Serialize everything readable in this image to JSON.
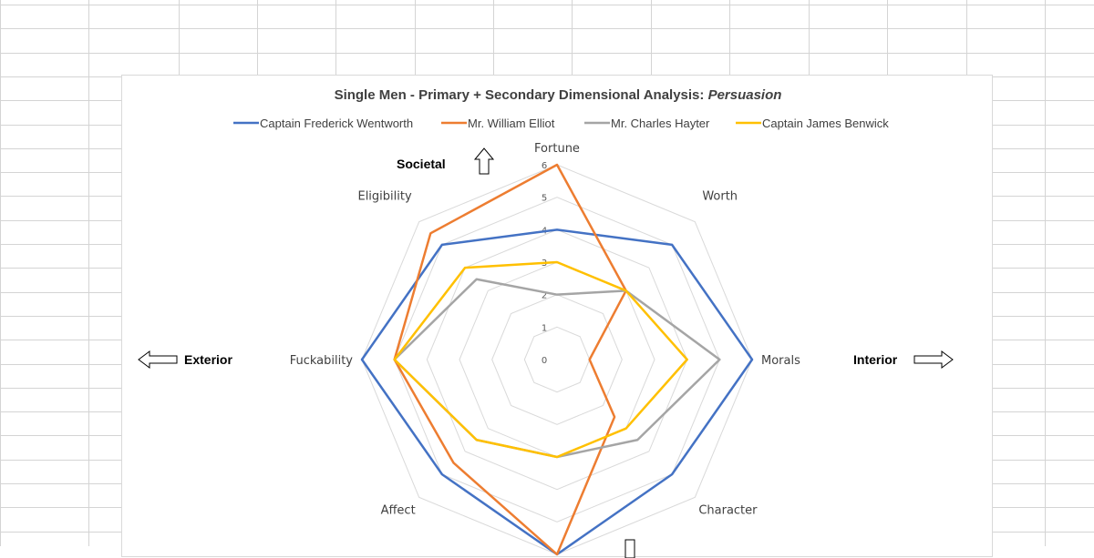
{
  "chart_data": {
    "type": "radar",
    "title_main": "Single Men - Primary + Secondary Dimensional Analysis: ",
    "title_italic": "Persuasion",
    "axes": [
      "Fortune",
      "Worth",
      "Morals",
      "Character",
      "",
      "Affect",
      "Fuckability",
      "Eligibility"
    ],
    "rlim": [
      0,
      6
    ],
    "ticks": [
      "0",
      "1",
      "2",
      "3",
      "4",
      "5",
      "6"
    ],
    "grid": true,
    "legend_position": "top",
    "series": [
      {
        "name": "Captain Frederick Wentworth",
        "color": "#4472C4",
        "values": [
          4,
          5,
          6,
          5,
          6,
          5,
          6,
          5
        ]
      },
      {
        "name": "Mr. William Elliot",
        "color": "#ED7D31",
        "values": [
          6,
          3,
          1,
          2.5,
          6,
          4.5,
          5,
          5.5
        ]
      },
      {
        "name": "Mr. Charles Hayter",
        "color": "#A5A5A5",
        "values": [
          2,
          3,
          5,
          3.5,
          3,
          3.5,
          5,
          3.5
        ]
      },
      {
        "name": "Captain James Benwick",
        "color": "#FFC000",
        "values": [
          3,
          3,
          4,
          3,
          3,
          3.5,
          5,
          4
        ]
      }
    ],
    "direction_labels": {
      "top": "Societal",
      "left": "Exterior",
      "right": "Interior"
    }
  }
}
